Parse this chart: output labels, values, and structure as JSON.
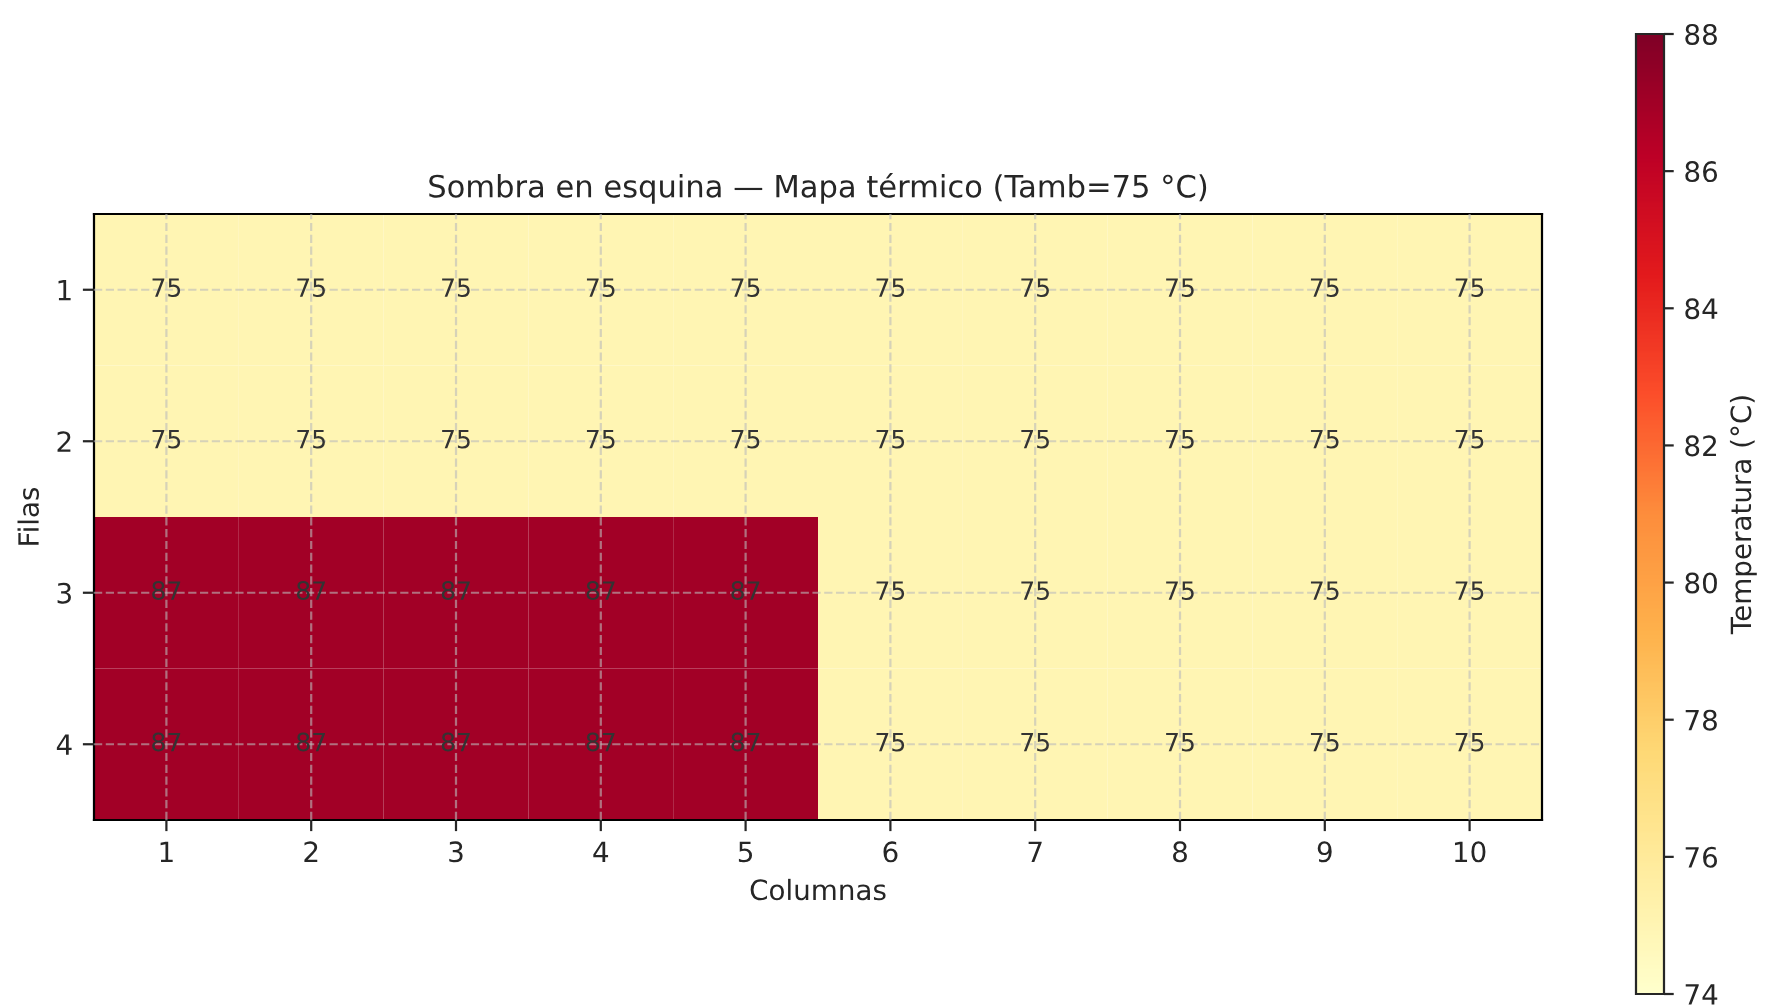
{
  "chart_data": {
    "type": "heatmap",
    "title": "Sombra en esquina — Mapa térmico (Tamb=75 °C)",
    "xlabel": "Columnas",
    "ylabel": "Filas",
    "clabel": "Temperatura (°C)",
    "categories": [
      "1",
      "2",
      "3",
      "4",
      "5",
      "6",
      "7",
      "8",
      "9",
      "10"
    ],
    "y_categories": [
      "1",
      "2",
      "3",
      "4"
    ],
    "cells": [
      [
        75,
        75,
        75,
        75,
        75,
        75,
        75,
        75,
        75,
        75
      ],
      [
        75,
        75,
        75,
        75,
        75,
        75,
        75,
        75,
        75,
        75
      ],
      [
        87,
        87,
        87,
        87,
        87,
        75,
        75,
        75,
        75,
        75
      ],
      [
        87,
        87,
        87,
        87,
        87,
        75,
        75,
        75,
        75,
        75
      ]
    ],
    "clim": [
      74,
      88
    ],
    "cticks": [
      74,
      76,
      78,
      80,
      82,
      84,
      86,
      88
    ],
    "data_labels": true,
    "grid": true
  }
}
